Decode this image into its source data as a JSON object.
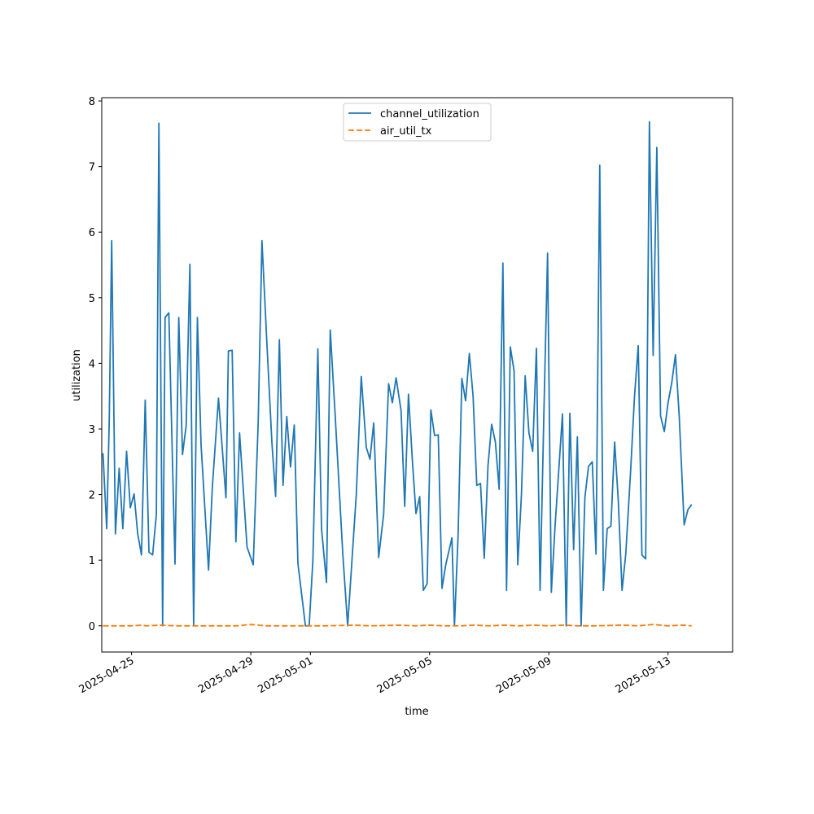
{
  "chart_data": {
    "type": "line",
    "xlabel": "time",
    "ylabel": "utilization",
    "xlim": [
      "2025-04-24T00:00",
      "2025-05-15T04:00"
    ],
    "ylim": [
      -0.4,
      8.05
    ],
    "yticks": [
      0,
      1,
      2,
      3,
      4,
      5,
      6,
      7,
      8
    ],
    "xticks": [
      "2025-04-25",
      "2025-04-29",
      "2025-05-01",
      "2025-05-05",
      "2025-05-09",
      "2025-05-13"
    ],
    "grid": false,
    "legend": "upper center",
    "series": [
      {
        "name": "channel_utilization",
        "color": "#1f77b4",
        "style": "solid",
        "points": [
          [
            "2025-04-24T01:00",
            2.63
          ],
          [
            "2025-04-24T04:00",
            1.48
          ],
          [
            "2025-04-24T06:00",
            3.12
          ],
          [
            "2025-04-24T08:00",
            5.87
          ],
          [
            "2025-04-24T11:00",
            1.4
          ],
          [
            "2025-04-24T14:00",
            2.4
          ],
          [
            "2025-04-24T17:00",
            1.48
          ],
          [
            "2025-04-24T20:00",
            2.66
          ],
          [
            "2025-04-24T23:00",
            1.8
          ],
          [
            "2025-04-25T02:00",
            2.01
          ],
          [
            "2025-04-25T05:00",
            1.4
          ],
          [
            "2025-04-25T08:00",
            1.08
          ],
          [
            "2025-04-25T11:00",
            3.44
          ],
          [
            "2025-04-25T14:00",
            1.12
          ],
          [
            "2025-04-25T17:00",
            1.08
          ],
          [
            "2025-04-25T20:00",
            1.7
          ],
          [
            "2025-04-25T22:00",
            7.66
          ],
          [
            "2025-04-26T01:00",
            0.0
          ],
          [
            "2025-04-26T03:00",
            4.7
          ],
          [
            "2025-04-26T06:00",
            4.77
          ],
          [
            "2025-04-26T11:00",
            0.94
          ],
          [
            "2025-04-26T14:00",
            4.7
          ],
          [
            "2025-04-26T17:00",
            2.61
          ],
          [
            "2025-04-26T20:00",
            3.05
          ],
          [
            "2025-04-26T23:00",
            5.51
          ],
          [
            "2025-04-27T02:00",
            0.0
          ],
          [
            "2025-04-27T05:00",
            4.7
          ],
          [
            "2025-04-27T08:00",
            2.76
          ],
          [
            "2025-04-27T14:00",
            0.85
          ],
          [
            "2025-04-27T17:00",
            2.1
          ],
          [
            "2025-04-27T22:00",
            3.47
          ],
          [
            "2025-04-28T04:00",
            1.95
          ],
          [
            "2025-04-28T06:00",
            4.19
          ],
          [
            "2025-04-28T09:00",
            4.2
          ],
          [
            "2025-04-28T12:00",
            1.28
          ],
          [
            "2025-04-28T15:00",
            2.94
          ],
          [
            "2025-04-28T21:00",
            1.2
          ],
          [
            "2025-04-29T02:00",
            0.93
          ],
          [
            "2025-04-29T06:00",
            3.1
          ],
          [
            "2025-04-29T09:00",
            5.87
          ],
          [
            "2025-04-29T13:00",
            4.3
          ],
          [
            "2025-04-29T17:00",
            2.8
          ],
          [
            "2025-04-29T20:00",
            1.97
          ],
          [
            "2025-04-29T23:00",
            4.36
          ],
          [
            "2025-04-30T02:00",
            2.14
          ],
          [
            "2025-04-30T05:00",
            3.19
          ],
          [
            "2025-04-30T08:00",
            2.42
          ],
          [
            "2025-04-30T11:00",
            3.06
          ],
          [
            "2025-04-30T14:00",
            0.95
          ],
          [
            "2025-04-30T20:00",
            0.0
          ],
          [
            "2025-04-30T23:00",
            0.0
          ],
          [
            "2025-05-01T02:00",
            1.0
          ],
          [
            "2025-05-01T06:00",
            4.22
          ],
          [
            "2025-05-01T09:00",
            1.48
          ],
          [
            "2025-05-01T13:00",
            0.66
          ],
          [
            "2025-05-01T16:00",
            4.51
          ],
          [
            "2025-05-01T20:00",
            3.2
          ],
          [
            "2025-05-02T02:00",
            1.12
          ],
          [
            "2025-05-02T06:00",
            0.0
          ],
          [
            "2025-05-02T13:00",
            2.0
          ],
          [
            "2025-05-02T17:00",
            3.8
          ],
          [
            "2025-05-02T21:00",
            2.72
          ],
          [
            "2025-05-03T00:00",
            2.54
          ],
          [
            "2025-05-03T03:00",
            3.09
          ],
          [
            "2025-05-03T07:00",
            1.04
          ],
          [
            "2025-05-03T11:00",
            1.7
          ],
          [
            "2025-05-03T15:00",
            3.69
          ],
          [
            "2025-05-03T18:00",
            3.4
          ],
          [
            "2025-05-03T21:00",
            3.78
          ],
          [
            "2025-05-04T01:00",
            3.28
          ],
          [
            "2025-05-04T04:00",
            1.82
          ],
          [
            "2025-05-04T07:00",
            3.53
          ],
          [
            "2025-05-04T10:00",
            2.56
          ],
          [
            "2025-05-04T13:00",
            1.71
          ],
          [
            "2025-05-04T16:00",
            1.97
          ],
          [
            "2025-05-04T19:00",
            0.54
          ],
          [
            "2025-05-04T22:00",
            0.64
          ],
          [
            "2025-05-05T01:00",
            3.29
          ],
          [
            "2025-05-05T04:00",
            2.9
          ],
          [
            "2025-05-05T07:00",
            2.91
          ],
          [
            "2025-05-05T10:00",
            0.57
          ],
          [
            "2025-05-05T13:00",
            0.93
          ],
          [
            "2025-05-05T18:00",
            1.34
          ],
          [
            "2025-05-05T20:00",
            0.0
          ],
          [
            "2025-05-05T23:00",
            1.39
          ],
          [
            "2025-05-06T02:00",
            3.77
          ],
          [
            "2025-05-06T05:00",
            3.43
          ],
          [
            "2025-05-06T08:00",
            4.15
          ],
          [
            "2025-05-06T11:00",
            3.5
          ],
          [
            "2025-05-06T14:00",
            2.14
          ],
          [
            "2025-05-06T17:00",
            2.17
          ],
          [
            "2025-05-06T20:00",
            1.03
          ],
          [
            "2025-05-06T23:00",
            2.44
          ],
          [
            "2025-05-07T02:00",
            3.07
          ],
          [
            "2025-05-07T05:00",
            2.8
          ],
          [
            "2025-05-07T08:00",
            2.08
          ],
          [
            "2025-05-07T11:00",
            5.53
          ],
          [
            "2025-05-07T14:00",
            0.54
          ],
          [
            "2025-05-07T17:00",
            4.25
          ],
          [
            "2025-05-07T20:00",
            3.89
          ],
          [
            "2025-05-07T23:00",
            0.93
          ],
          [
            "2025-05-08T02:00",
            2.0
          ],
          [
            "2025-05-08T05:00",
            3.81
          ],
          [
            "2025-05-08T08:00",
            2.94
          ],
          [
            "2025-05-08T11:00",
            2.66
          ],
          [
            "2025-05-08T14:00",
            4.23
          ],
          [
            "2025-05-08T17:00",
            0.54
          ],
          [
            "2025-05-08T20:00",
            3.2
          ],
          [
            "2025-05-08T23:00",
            5.68
          ],
          [
            "2025-05-09T02:00",
            0.51
          ],
          [
            "2025-05-09T05:00",
            1.5
          ],
          [
            "2025-05-09T11:00",
            3.23
          ],
          [
            "2025-05-09T14:00",
            0.0
          ],
          [
            "2025-05-09T17:00",
            3.24
          ],
          [
            "2025-05-09T20:00",
            1.16
          ],
          [
            "2025-05-09T23:00",
            2.88
          ],
          [
            "2025-05-10T02:00",
            0.0
          ],
          [
            "2025-05-10T05:00",
            1.95
          ],
          [
            "2025-05-10T08:00",
            2.43
          ],
          [
            "2025-05-10T11:00",
            2.5
          ],
          [
            "2025-05-10T14:00",
            1.09
          ],
          [
            "2025-05-10T17:00",
            7.02
          ],
          [
            "2025-05-10T20:00",
            0.54
          ],
          [
            "2025-05-10T23:00",
            1.48
          ],
          [
            "2025-05-11T02:00",
            1.52
          ],
          [
            "2025-05-11T05:00",
            2.8
          ],
          [
            "2025-05-11T08:00",
            1.9
          ],
          [
            "2025-05-11T11:00",
            0.54
          ],
          [
            "2025-05-11T14:00",
            1.1
          ],
          [
            "2025-05-11T18:00",
            2.4
          ],
          [
            "2025-05-11T21:00",
            3.5
          ],
          [
            "2025-05-12T00:00",
            4.27
          ],
          [
            "2025-05-12T03:00",
            1.08
          ],
          [
            "2025-05-12T06:00",
            1.02
          ],
          [
            "2025-05-12T09:00",
            7.68
          ],
          [
            "2025-05-12T12:00",
            4.12
          ],
          [
            "2025-05-12T15:00",
            7.29
          ],
          [
            "2025-05-12T18:00",
            3.2
          ],
          [
            "2025-05-12T21:00",
            2.96
          ],
          [
            "2025-05-13T00:00",
            3.4
          ],
          [
            "2025-05-13T03:00",
            3.7
          ],
          [
            "2025-05-13T06:00",
            4.13
          ],
          [
            "2025-05-13T09:00",
            3.2
          ],
          [
            "2025-05-13T13:00",
            1.54
          ],
          [
            "2025-05-13T16:00",
            1.77
          ],
          [
            "2025-05-13T19:00",
            1.85
          ]
        ]
      },
      {
        "name": "air_util_tx",
        "color": "#ff7f0e",
        "style": "dashed",
        "points": [
          [
            "2025-04-24T01:00",
            0.0
          ],
          [
            "2025-04-25T00:00",
            0.0
          ],
          [
            "2025-04-25T08:00",
            0.01
          ],
          [
            "2025-04-25T12:00",
            0.0
          ],
          [
            "2025-04-26T00:00",
            0.01
          ],
          [
            "2025-04-26T12:00",
            0.0
          ],
          [
            "2025-04-27T12:00",
            0.0
          ],
          [
            "2025-04-28T12:00",
            0.0
          ],
          [
            "2025-04-29T00:00",
            0.02
          ],
          [
            "2025-04-29T12:00",
            0.0
          ],
          [
            "2025-04-30T12:00",
            0.0
          ],
          [
            "2025-05-01T12:00",
            0.0
          ],
          [
            "2025-05-02T12:00",
            0.01
          ],
          [
            "2025-05-03T00:00",
            0.0
          ],
          [
            "2025-05-04T00:00",
            0.01
          ],
          [
            "2025-05-04T12:00",
            0.0
          ],
          [
            "2025-05-05T00:00",
            0.01
          ],
          [
            "2025-05-05T12:00",
            0.0
          ],
          [
            "2025-05-06T00:00",
            0.0
          ],
          [
            "2025-05-06T12:00",
            0.01
          ],
          [
            "2025-05-07T00:00",
            0.0
          ],
          [
            "2025-05-07T12:00",
            0.01
          ],
          [
            "2025-05-08T00:00",
            0.0
          ],
          [
            "2025-05-08T12:00",
            0.01
          ],
          [
            "2025-05-09T00:00",
            0.0
          ],
          [
            "2025-05-09T12:00",
            0.01
          ],
          [
            "2025-05-10T00:00",
            0.0
          ],
          [
            "2025-05-10T12:00",
            0.0
          ],
          [
            "2025-05-11T12:00",
            0.01
          ],
          [
            "2025-05-12T00:00",
            0.0
          ],
          [
            "2025-05-12T12:00",
            0.02
          ],
          [
            "2025-05-13T00:00",
            0.0
          ],
          [
            "2025-05-13T12:00",
            0.01
          ],
          [
            "2025-05-13T19:00",
            0.0
          ]
        ]
      }
    ]
  }
}
